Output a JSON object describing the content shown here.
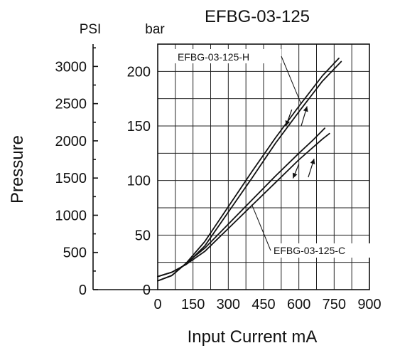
{
  "chart_data": {
    "type": "line",
    "title": "EFBG-03-125",
    "xlabel": "Input Current mA",
    "ylabel": "Pressure",
    "units": {
      "psi": "PSI",
      "bar": "bar"
    },
    "xlim": [
      0,
      900
    ],
    "ylim_bar": [
      0,
      225
    ],
    "ylim_psi": [
      0,
      3300
    ],
    "x_ticks": [
      "0",
      "150",
      "300",
      "450",
      "600",
      "750",
      "900"
    ],
    "bar_ticks": [
      "0",
      "50",
      "100",
      "150",
      "200"
    ],
    "psi_ticks": [
      "0",
      "500",
      "1000",
      "1500",
      "2000",
      "2500",
      "3000"
    ],
    "grid": true,
    "series": [
      {
        "name": "EFBG-03-125-H",
        "x": [
          0,
          60,
          120,
          200,
          300,
          400,
          500,
          600,
          700,
          780
        ],
        "y": [
          12,
          16,
          23,
          40,
          71,
          102,
          134,
          163,
          191,
          209
        ]
      },
      {
        "x": [
          0,
          60,
          120,
          200,
          300,
          400,
          500,
          600,
          700,
          770
        ],
        "y": [
          8,
          13,
          24,
          44,
          76,
          108,
          139,
          168,
          196,
          212
        ]
      },
      {
        "name": "EFBG-03-125-C",
        "x": [
          0,
          60,
          120,
          200,
          300,
          400,
          500,
          600,
          700,
          730
        ],
        "y": [
          12,
          16,
          23,
          35,
          56,
          77,
          98,
          119,
          138,
          143
        ]
      },
      {
        "x": [
          0,
          60,
          120,
          200,
          300,
          400,
          500,
          600,
          660,
          710
        ],
        "y": [
          8,
          13,
          24,
          38,
          60,
          82,
          104,
          125,
          137,
          148
        ]
      }
    ],
    "annotations": [
      {
        "text": "EFBG-03-125-H",
        "x": 600,
        "y": 166
      },
      {
        "text": "EFBG-03-125-C",
        "x": 380,
        "y": 66
      }
    ]
  }
}
